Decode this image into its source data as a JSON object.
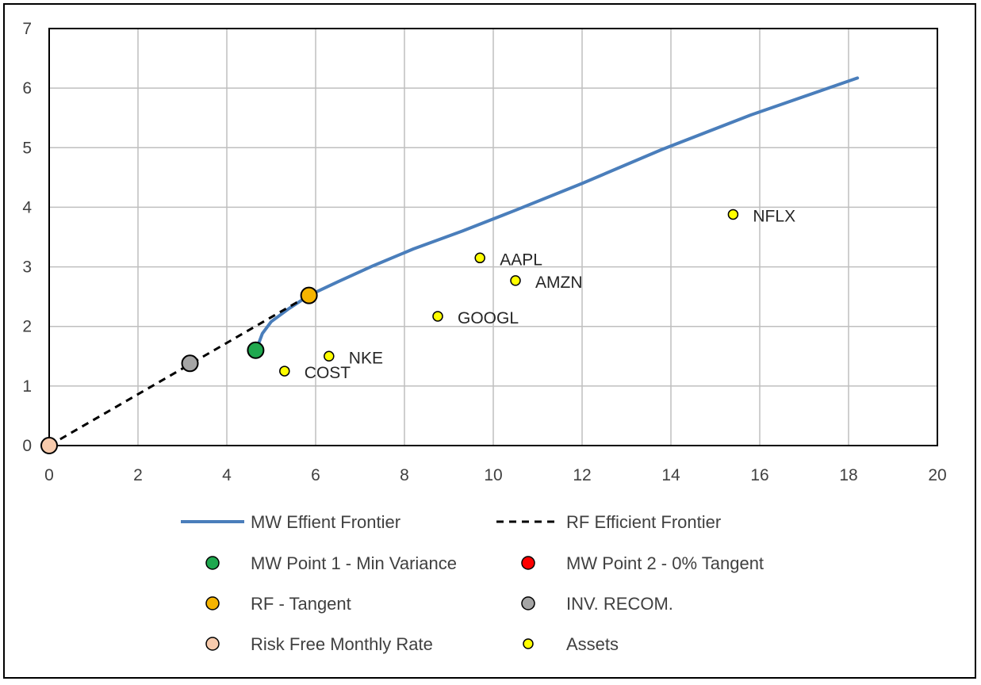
{
  "chart_data": {
    "type": "scatter",
    "xlim": [
      0,
      20
    ],
    "ylim": [
      0,
      7
    ],
    "x_ticks": [
      "0",
      "2",
      "4",
      "6",
      "8",
      "10",
      "12",
      "14",
      "16",
      "18",
      "20"
    ],
    "y_ticks": [
      "0",
      "1",
      "2",
      "3",
      "4",
      "5",
      "6",
      "7"
    ],
    "grid": true,
    "legend_position": "bottom",
    "series": [
      {
        "name": "MW Effient Frontier",
        "kind": "line",
        "style": "solid",
        "color": "#4a7ebb",
        "points": [
          [
            4.72,
            1.72
          ],
          [
            4.8,
            1.88
          ],
          [
            5.0,
            2.08
          ],
          [
            5.4,
            2.3
          ],
          [
            5.85,
            2.52
          ],
          [
            6.5,
            2.75
          ],
          [
            7.3,
            3.02
          ],
          [
            8.2,
            3.3
          ],
          [
            9.3,
            3.6
          ],
          [
            10.5,
            3.95
          ],
          [
            12.0,
            4.4
          ],
          [
            13.8,
            4.97
          ],
          [
            15.8,
            5.55
          ],
          [
            18.2,
            6.17
          ]
        ]
      },
      {
        "name": "RF Efficient Frontier",
        "kind": "line",
        "style": "dashed",
        "color": "#000000",
        "points": [
          [
            0,
            0
          ],
          [
            5.85,
            2.52
          ]
        ]
      },
      {
        "name": "MW Point 1 - Min Variance",
        "kind": "marker",
        "color": "#1fa84f",
        "size": "large",
        "points": [
          [
            4.65,
            1.6
          ]
        ]
      },
      {
        "name": "MW Point 2 - 0% Tangent",
        "kind": "marker",
        "color": "#ff0000",
        "size": "large",
        "points": []
      },
      {
        "name": "RF - Tangent",
        "kind": "marker",
        "color": "#f5b400",
        "size": "large",
        "points": [
          [
            5.85,
            2.52
          ]
        ]
      },
      {
        "name": "INV. RECOM.",
        "kind": "marker",
        "color": "#a5a5a5",
        "size": "large",
        "points": [
          [
            3.17,
            1.38
          ]
        ]
      },
      {
        "name": "Risk Free Monthly Rate",
        "kind": "marker",
        "color": "#f8cbad",
        "size": "large",
        "points": [
          [
            0,
            0
          ]
        ]
      },
      {
        "name": "Assets",
        "kind": "marker",
        "color": "#ffff00",
        "size": "small",
        "points": [
          [
            15.4,
            3.88
          ],
          [
            9.7,
            3.15
          ],
          [
            10.5,
            2.77
          ],
          [
            8.75,
            2.17
          ],
          [
            6.3,
            1.5
          ],
          [
            5.3,
            1.25
          ]
        ],
        "labels": [
          "NFLX",
          "AAPL",
          "AMZN",
          "GOOGL",
          "NKE",
          "COST"
        ]
      }
    ]
  }
}
